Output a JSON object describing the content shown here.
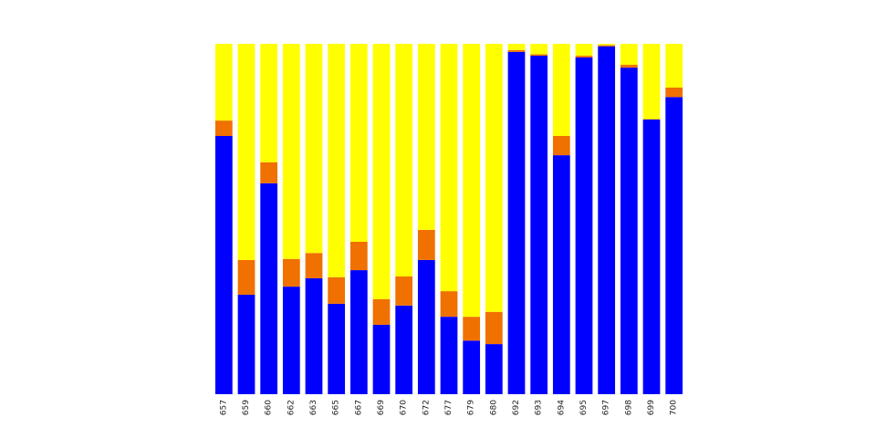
{
  "chart_data": {
    "type": "bar",
    "stacked": true,
    "normalized": true,
    "title": "",
    "xlabel": "",
    "ylabel": "",
    "ylim": [
      0,
      1
    ],
    "grid": false,
    "legend": "none",
    "categories": [
      "657",
      "659",
      "660",
      "662",
      "663",
      "665",
      "667",
      "669",
      "670",
      "672",
      "677",
      "679",
      "680",
      "692",
      "693",
      "694",
      "695",
      "697",
      "698",
      "699",
      "700"
    ],
    "series": [
      {
        "color": "#0000ff",
        "values": [
          0.737,
          0.284,
          0.602,
          0.307,
          0.331,
          0.258,
          0.354,
          0.198,
          0.253,
          0.383,
          0.221,
          0.153,
          0.143,
          0.977,
          0.966,
          0.682,
          0.961,
          0.993,
          0.932,
          0.784,
          0.848
        ]
      },
      {
        "color": "#f07000",
        "values": [
          0.044,
          0.099,
          0.06,
          0.079,
          0.072,
          0.076,
          0.081,
          0.073,
          0.083,
          0.086,
          0.073,
          0.068,
          0.092,
          0.005,
          0.004,
          0.055,
          0.005,
          0.003,
          0.008,
          0.001,
          0.027
        ]
      },
      {
        "color": "#ffff00",
        "values": [
          0.219,
          0.617,
          0.338,
          0.614,
          0.597,
          0.666,
          0.565,
          0.729,
          0.664,
          0.531,
          0.706,
          0.779,
          0.765,
          0.018,
          0.03,
          0.263,
          0.034,
          0.004,
          0.06,
          0.215,
          0.125
        ]
      }
    ]
  }
}
